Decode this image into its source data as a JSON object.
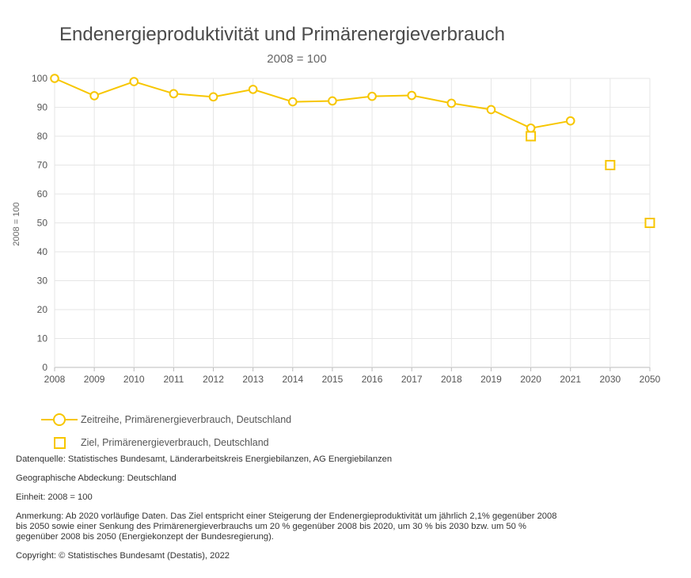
{
  "title": "Endenergieproduktivität und Primärenergieverbrauch",
  "subtitle": "2008 = 100",
  "chart_data": {
    "type": "line",
    "categories": [
      "2008",
      "2009",
      "2010",
      "2011",
      "2012",
      "2013",
      "2014",
      "2015",
      "2016",
      "2017",
      "2018",
      "2019",
      "2020",
      "2021",
      "2030",
      "2050"
    ],
    "ylabel": "2008 = 100",
    "ylim": [
      0,
      100
    ],
    "yticks": [
      0,
      10,
      20,
      30,
      40,
      50,
      60,
      70,
      80,
      90,
      100
    ],
    "series": [
      {
        "name": "Zeitreihe, Primärenergieverbrauch, Deutschland",
        "marker": "circle",
        "line": true,
        "values": [
          100,
          94.0,
          98.9,
          94.7,
          93.6,
          96.2,
          91.9,
          92.2,
          93.8,
          94.1,
          91.4,
          89.2,
          82.8,
          85.3,
          null,
          null
        ]
      },
      {
        "name": "Ziel, Primärenergieverbrauch, Deutschland",
        "marker": "square",
        "line": false,
        "values": [
          null,
          null,
          null,
          null,
          null,
          null,
          null,
          null,
          null,
          null,
          null,
          null,
          80,
          null,
          70,
          50
        ]
      }
    ],
    "color": "#f7c600"
  },
  "legend": {
    "series1": "Zeitreihe, Primärenergieverbrauch, Deutschland",
    "series2": "Ziel, Primärenergieverbrauch, Deutschland"
  },
  "notes": {
    "source": "Datenquelle: Statistisches Bundesamt, Länderarbeitskreis Energiebilanzen, AG Energiebilanzen",
    "coverage": "Geographische Abdeckung: Deutschland",
    "unit": "Einheit: 2008 = 100",
    "remark_line1": "Anmerkung: Ab 2020 vorläufige Daten. Das Ziel entspricht einer Steigerung der Endenergieproduktivität um jährlich 2,1% gegenüber 2008",
    "remark_line2": "bis 2050 sowie einer Senkung des Primärenergieverbrauchs um 20 % gegenüber 2008 bis 2020, um 30 % bis 2030 bzw. um 50 %",
    "remark_line3": "gegenüber 2008 bis 2050 (Energiekonzept der Bundesregierung).",
    "copyright": "Copyright: © Statistisches Bundesamt (Destatis), 2022"
  }
}
